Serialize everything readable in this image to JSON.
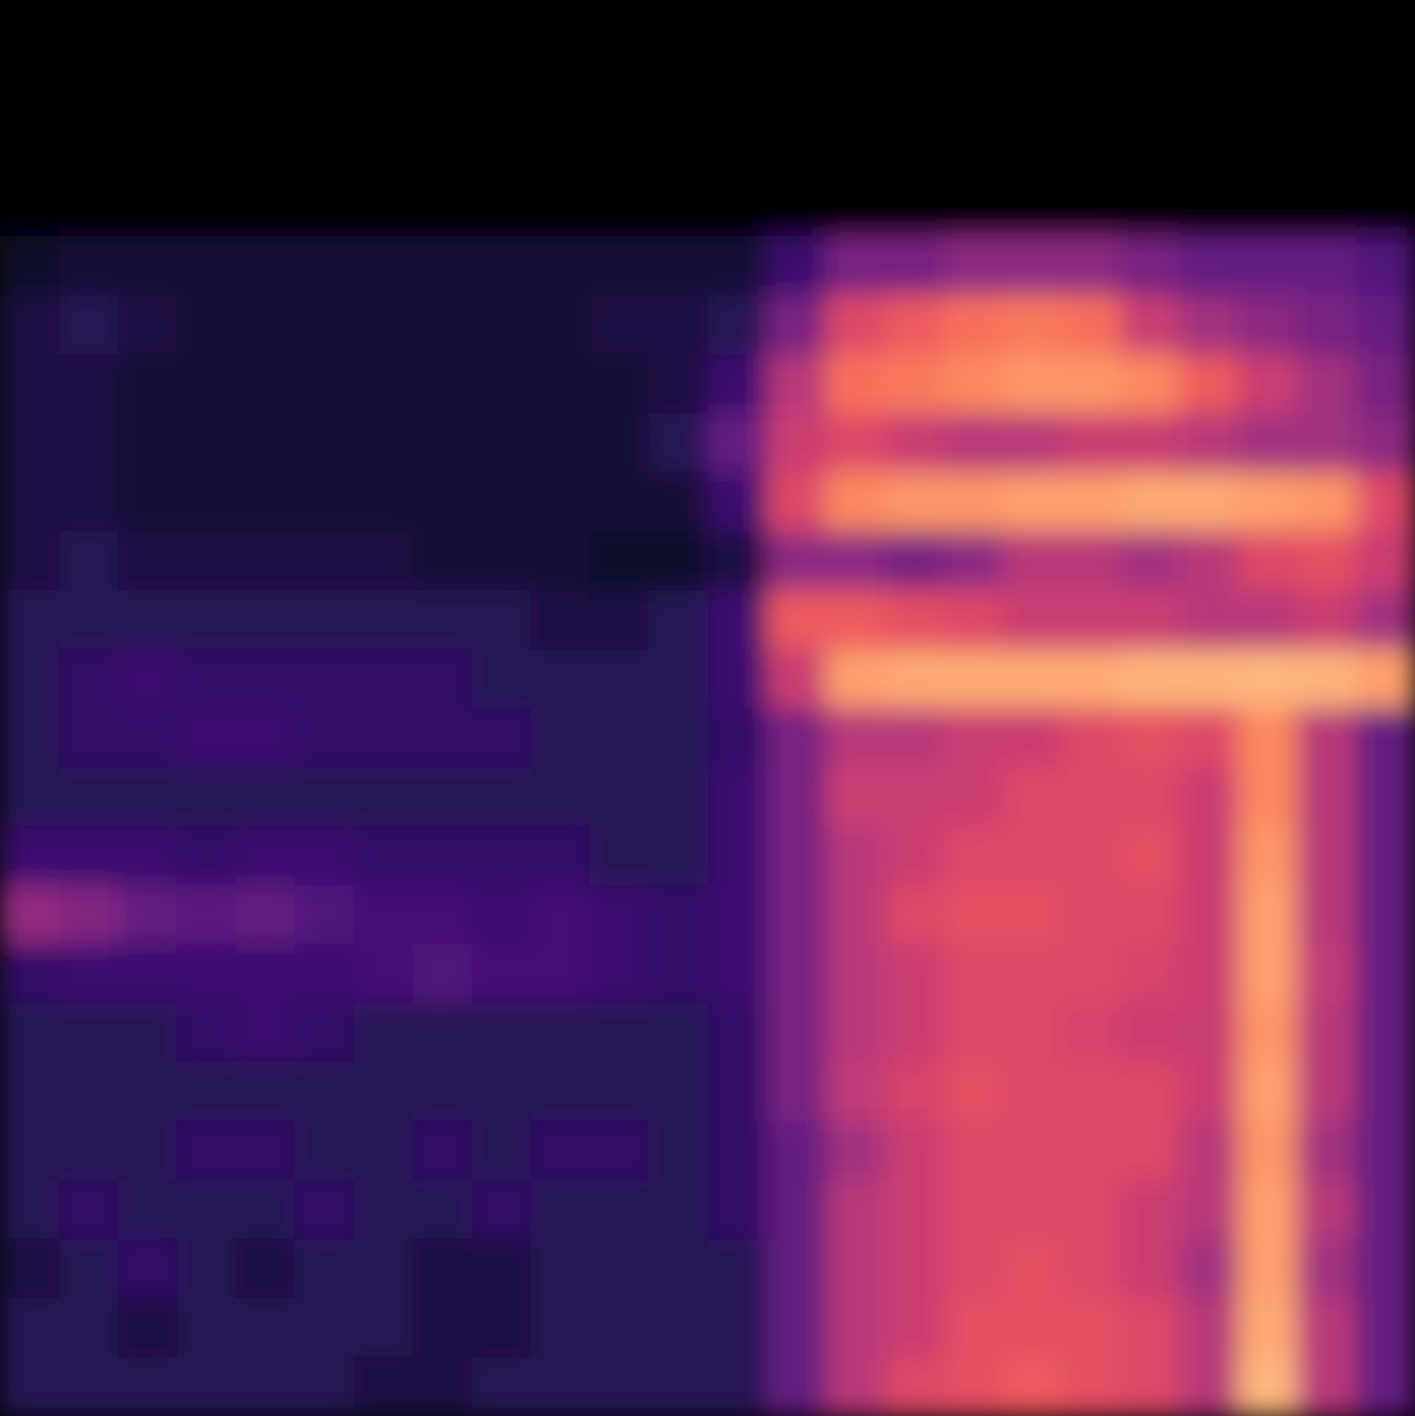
{
  "chart_data": {
    "type": "heatmap",
    "color": "magma",
    "zlim": [
      0,
      1
    ],
    "tick_labels": false,
    "grid": false,
    "cells": [
      [
        0,
        0,
        0,
        0,
        0,
        0,
        0,
        0,
        0,
        0,
        0,
        0,
        0,
        0,
        0,
        0,
        0,
        0,
        0,
        0,
        0,
        0,
        0,
        0
      ],
      [
        0,
        0,
        0,
        0,
        0,
        0,
        0,
        0,
        0,
        0,
        0,
        0,
        0,
        0,
        0,
        0,
        0,
        0,
        0,
        0,
        0,
        0,
        0,
        0
      ],
      [
        0,
        0,
        0,
        0,
        0,
        0,
        0,
        0,
        0,
        0,
        0,
        0,
        0,
        0,
        0,
        0,
        0,
        0,
        0,
        0,
        0,
        0,
        0,
        0
      ],
      [
        0,
        0,
        0,
        0,
        0,
        0,
        0,
        0,
        0,
        0,
        0,
        0,
        0,
        0,
        0,
        0,
        0,
        0,
        0,
        0,
        0,
        0,
        0,
        0
      ],
      [
        0.08,
        0.1,
        0.1,
        0.1,
        0.1,
        0.1,
        0.1,
        0.1,
        0.1,
        0.1,
        0.1,
        0.1,
        0.1,
        0.2,
        0.35,
        0.35,
        0.4,
        0.4,
        0.4,
        0.35,
        0.3,
        0.3,
        0.3,
        0.25
      ],
      [
        0.12,
        0.15,
        0.12,
        0.1,
        0.1,
        0.1,
        0.1,
        0.1,
        0.1,
        0.1,
        0.12,
        0.12,
        0.15,
        0.35,
        0.6,
        0.65,
        0.7,
        0.72,
        0.7,
        0.55,
        0.45,
        0.4,
        0.35,
        0.3
      ],
      [
        0.12,
        0.12,
        0.1,
        0.1,
        0.1,
        0.1,
        0.1,
        0.1,
        0.1,
        0.1,
        0.1,
        0.12,
        0.2,
        0.5,
        0.7,
        0.72,
        0.75,
        0.78,
        0.78,
        0.75,
        0.65,
        0.55,
        0.45,
        0.35
      ],
      [
        0.12,
        0.12,
        0.1,
        0.1,
        0.1,
        0.1,
        0.1,
        0.1,
        0.1,
        0.1,
        0.1,
        0.15,
        0.3,
        0.55,
        0.6,
        0.55,
        0.5,
        0.5,
        0.55,
        0.55,
        0.5,
        0.45,
        0.45,
        0.4
      ],
      [
        0.12,
        0.12,
        0.1,
        0.1,
        0.1,
        0.1,
        0.1,
        0.1,
        0.1,
        0.1,
        0.1,
        0.1,
        0.2,
        0.6,
        0.75,
        0.78,
        0.78,
        0.8,
        0.8,
        0.82,
        0.82,
        0.8,
        0.78,
        0.6
      ],
      [
        0.12,
        0.15,
        0.12,
        0.12,
        0.12,
        0.12,
        0.12,
        0.1,
        0.1,
        0.1,
        0.08,
        0.08,
        0.12,
        0.4,
        0.4,
        0.35,
        0.4,
        0.5,
        0.5,
        0.45,
        0.5,
        0.6,
        0.62,
        0.55
      ],
      [
        0.15,
        0.15,
        0.15,
        0.15,
        0.15,
        0.15,
        0.15,
        0.15,
        0.15,
        0.12,
        0.12,
        0.15,
        0.2,
        0.65,
        0.65,
        0.62,
        0.6,
        0.55,
        0.55,
        0.55,
        0.5,
        0.5,
        0.55,
        0.45
      ],
      [
        0.15,
        0.18,
        0.2,
        0.18,
        0.18,
        0.18,
        0.18,
        0.18,
        0.15,
        0.15,
        0.15,
        0.15,
        0.2,
        0.55,
        0.8,
        0.82,
        0.82,
        0.82,
        0.82,
        0.84,
        0.84,
        0.85,
        0.84,
        0.8
      ],
      [
        0.15,
        0.18,
        0.18,
        0.2,
        0.2,
        0.18,
        0.18,
        0.18,
        0.18,
        0.15,
        0.15,
        0.15,
        0.18,
        0.35,
        0.5,
        0.5,
        0.55,
        0.55,
        0.6,
        0.62,
        0.6,
        0.75,
        0.5,
        0.3
      ],
      [
        0.15,
        0.15,
        0.15,
        0.15,
        0.15,
        0.15,
        0.15,
        0.15,
        0.15,
        0.15,
        0.15,
        0.15,
        0.2,
        0.35,
        0.55,
        0.55,
        0.55,
        0.6,
        0.6,
        0.6,
        0.55,
        0.75,
        0.5,
        0.3
      ],
      [
        0.2,
        0.2,
        0.2,
        0.18,
        0.2,
        0.2,
        0.18,
        0.18,
        0.18,
        0.18,
        0.15,
        0.15,
        0.2,
        0.35,
        0.5,
        0.55,
        0.6,
        0.6,
        0.6,
        0.62,
        0.55,
        0.78,
        0.5,
        0.3
      ],
      [
        0.42,
        0.38,
        0.3,
        0.28,
        0.3,
        0.25,
        0.22,
        0.22,
        0.2,
        0.22,
        0.2,
        0.18,
        0.2,
        0.35,
        0.5,
        0.6,
        0.62,
        0.62,
        0.6,
        0.6,
        0.55,
        0.8,
        0.5,
        0.3
      ],
      [
        0.18,
        0.2,
        0.2,
        0.2,
        0.2,
        0.2,
        0.22,
        0.25,
        0.22,
        0.22,
        0.2,
        0.18,
        0.2,
        0.35,
        0.5,
        0.55,
        0.6,
        0.6,
        0.6,
        0.58,
        0.55,
        0.8,
        0.52,
        0.3
      ],
      [
        0.15,
        0.15,
        0.15,
        0.18,
        0.2,
        0.18,
        0.15,
        0.15,
        0.15,
        0.15,
        0.15,
        0.15,
        0.18,
        0.35,
        0.5,
        0.55,
        0.6,
        0.6,
        0.58,
        0.55,
        0.55,
        0.78,
        0.5,
        0.3
      ],
      [
        0.15,
        0.15,
        0.15,
        0.15,
        0.15,
        0.15,
        0.15,
        0.15,
        0.15,
        0.15,
        0.15,
        0.15,
        0.18,
        0.35,
        0.52,
        0.58,
        0.62,
        0.6,
        0.6,
        0.6,
        0.55,
        0.8,
        0.5,
        0.3
      ],
      [
        0.15,
        0.15,
        0.15,
        0.18,
        0.18,
        0.15,
        0.15,
        0.18,
        0.15,
        0.18,
        0.18,
        0.15,
        0.18,
        0.3,
        0.45,
        0.55,
        0.6,
        0.6,
        0.6,
        0.6,
        0.5,
        0.78,
        0.45,
        0.3
      ],
      [
        0.15,
        0.18,
        0.15,
        0.15,
        0.15,
        0.18,
        0.15,
        0.15,
        0.18,
        0.15,
        0.15,
        0.15,
        0.18,
        0.3,
        0.5,
        0.55,
        0.6,
        0.6,
        0.6,
        0.55,
        0.5,
        0.8,
        0.5,
        0.3
      ],
      [
        0.12,
        0.15,
        0.18,
        0.15,
        0.12,
        0.15,
        0.15,
        0.12,
        0.12,
        0.15,
        0.15,
        0.15,
        0.15,
        0.3,
        0.5,
        0.55,
        0.6,
        0.62,
        0.6,
        0.55,
        0.45,
        0.8,
        0.45,
        0.3
      ],
      [
        0.15,
        0.15,
        0.12,
        0.15,
        0.15,
        0.15,
        0.15,
        0.12,
        0.12,
        0.15,
        0.15,
        0.15,
        0.15,
        0.3,
        0.5,
        0.55,
        0.62,
        0.62,
        0.62,
        0.6,
        0.5,
        0.82,
        0.5,
        0.3
      ],
      [
        0.15,
        0.15,
        0.15,
        0.15,
        0.15,
        0.15,
        0.12,
        0.12,
        0.15,
        0.15,
        0.15,
        0.15,
        0.15,
        0.3,
        0.5,
        0.6,
        0.62,
        0.65,
        0.62,
        0.6,
        0.5,
        0.85,
        0.5,
        0.3
      ]
    ]
  }
}
